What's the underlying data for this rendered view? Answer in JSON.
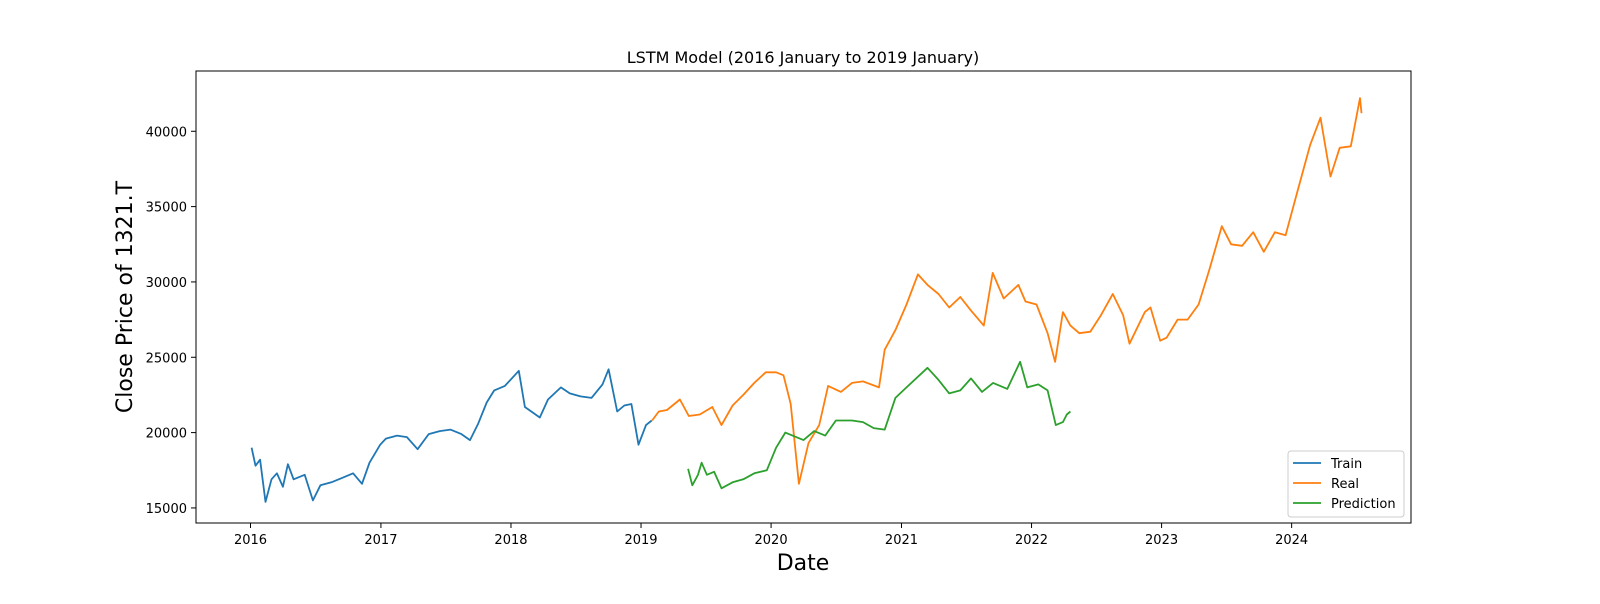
{
  "chart_data": {
    "type": "line",
    "title": "LSTM Model (2016 January to 2019 January)",
    "xlabel": "Date",
    "ylabel": "Close Price of 1321.T",
    "xlim": [
      "2015-08-01",
      "2024-12-01"
    ],
    "ylim": [
      14000,
      44000
    ],
    "x_ticks": [
      "2016",
      "2017",
      "2018",
      "2019",
      "2020",
      "2021",
      "2022",
      "2023",
      "2024"
    ],
    "y_ticks": [
      15000,
      20000,
      25000,
      30000,
      35000,
      40000
    ],
    "grid": false,
    "legend_position": "lower-right",
    "series": [
      {
        "name": "Train",
        "color": "#1f77b4",
        "points": [
          [
            "2016-01-04",
            19000
          ],
          [
            "2016-01-15",
            17800
          ],
          [
            "2016-01-28",
            18200
          ],
          [
            "2016-02-12",
            15400
          ],
          [
            "2016-02-29",
            16900
          ],
          [
            "2016-03-15",
            17300
          ],
          [
            "2016-04-01",
            16400
          ],
          [
            "2016-04-15",
            17900
          ],
          [
            "2016-05-01",
            16900
          ],
          [
            "2016-06-01",
            17200
          ],
          [
            "2016-06-24",
            15500
          ],
          [
            "2016-07-15",
            16500
          ],
          [
            "2016-08-15",
            16700
          ],
          [
            "2016-09-15",
            17000
          ],
          [
            "2016-10-15",
            17300
          ],
          [
            "2016-11-09",
            16600
          ],
          [
            "2016-11-30",
            18000
          ],
          [
            "2016-12-30",
            19200
          ],
          [
            "2017-01-15",
            19600
          ],
          [
            "2017-02-15",
            19800
          ],
          [
            "2017-03-15",
            19700
          ],
          [
            "2017-04-14",
            18900
          ],
          [
            "2017-05-15",
            19900
          ],
          [
            "2017-06-15",
            20100
          ],
          [
            "2017-07-15",
            20200
          ],
          [
            "2017-08-15",
            19900
          ],
          [
            "2017-09-08",
            19500
          ],
          [
            "2017-10-01",
            20600
          ],
          [
            "2017-10-25",
            22000
          ],
          [
            "2017-11-15",
            22800
          ],
          [
            "2017-12-15",
            23100
          ],
          [
            "2018-01-23",
            24100
          ],
          [
            "2018-02-09",
            21700
          ],
          [
            "2018-03-23",
            21000
          ],
          [
            "2018-04-15",
            22200
          ],
          [
            "2018-05-21",
            23000
          ],
          [
            "2018-06-15",
            22600
          ],
          [
            "2018-07-15",
            22400
          ],
          [
            "2018-08-15",
            22300
          ],
          [
            "2018-09-15",
            23200
          ],
          [
            "2018-10-02",
            24200
          ],
          [
            "2018-10-26",
            21400
          ],
          [
            "2018-11-15",
            21800
          ],
          [
            "2018-12-05",
            21900
          ],
          [
            "2018-12-25",
            19200
          ],
          [
            "2019-01-15",
            20500
          ],
          [
            "2019-01-31",
            20800
          ]
        ]
      },
      {
        "name": "Real",
        "color": "#ff7f0e",
        "points": [
          [
            "2019-02-01",
            20800
          ],
          [
            "2019-02-20",
            21400
          ],
          [
            "2019-03-15",
            21500
          ],
          [
            "2019-04-20",
            22200
          ],
          [
            "2019-05-15",
            21100
          ],
          [
            "2019-06-15",
            21200
          ],
          [
            "2019-07-20",
            21700
          ],
          [
            "2019-08-15",
            20500
          ],
          [
            "2019-09-15",
            21800
          ],
          [
            "2019-10-15",
            22500
          ],
          [
            "2019-11-15",
            23300
          ],
          [
            "2019-12-17",
            24000
          ],
          [
            "2020-01-15",
            24000
          ],
          [
            "2020-02-05",
            23800
          ],
          [
            "2020-02-25",
            21900
          ],
          [
            "2020-03-19",
            16600
          ],
          [
            "2020-04-15",
            19300
          ],
          [
            "2020-05-15",
            20500
          ],
          [
            "2020-06-09",
            23100
          ],
          [
            "2020-07-15",
            22700
          ],
          [
            "2020-08-15",
            23300
          ],
          [
            "2020-09-15",
            23400
          ],
          [
            "2020-10-30",
            23000
          ],
          [
            "2020-11-15",
            25500
          ],
          [
            "2020-12-15",
            26800
          ],
          [
            "2021-01-15",
            28500
          ],
          [
            "2021-02-16",
            30500
          ],
          [
            "2021-03-15",
            29800
          ],
          [
            "2021-04-15",
            29200
          ],
          [
            "2021-05-15",
            28300
          ],
          [
            "2021-06-15",
            29000
          ],
          [
            "2021-07-15",
            28100
          ],
          [
            "2021-08-20",
            27100
          ],
          [
            "2021-09-14",
            30600
          ],
          [
            "2021-10-15",
            28900
          ],
          [
            "2021-11-25",
            29800
          ],
          [
            "2021-12-15",
            28700
          ],
          [
            "2022-01-15",
            28500
          ],
          [
            "2022-02-15",
            26600
          ],
          [
            "2022-03-08",
            24700
          ],
          [
            "2022-03-30",
            28000
          ],
          [
            "2022-04-20",
            27100
          ],
          [
            "2022-05-15",
            26600
          ],
          [
            "2022-06-15",
            26700
          ],
          [
            "2022-07-15",
            27800
          ],
          [
            "2022-08-17",
            29200
          ],
          [
            "2022-09-15",
            27800
          ],
          [
            "2022-10-03",
            25900
          ],
          [
            "2022-11-15",
            28000
          ],
          [
            "2022-12-01",
            28300
          ],
          [
            "2022-12-28",
            26100
          ],
          [
            "2023-01-15",
            26300
          ],
          [
            "2023-02-15",
            27500
          ],
          [
            "2023-03-15",
            27500
          ],
          [
            "2023-04-15",
            28500
          ],
          [
            "2023-05-15",
            30800
          ],
          [
            "2023-06-19",
            33700
          ],
          [
            "2023-07-15",
            32500
          ],
          [
            "2023-08-15",
            32400
          ],
          [
            "2023-09-15",
            33300
          ],
          [
            "2023-10-15",
            32000
          ],
          [
            "2023-11-15",
            33300
          ],
          [
            "2023-12-15",
            33100
          ],
          [
            "2024-01-15",
            35800
          ],
          [
            "2024-02-22",
            39100
          ],
          [
            "2024-03-22",
            40900
          ],
          [
            "2024-04-19",
            37000
          ],
          [
            "2024-05-15",
            38900
          ],
          [
            "2024-06-15",
            39000
          ],
          [
            "2024-07-11",
            42200
          ],
          [
            "2024-07-15",
            41200
          ]
        ]
      },
      {
        "name": "Prediction",
        "color": "#2ca02c",
        "points": [
          [
            "2019-05-13",
            17600
          ],
          [
            "2019-05-25",
            16500
          ],
          [
            "2019-06-10",
            17200
          ],
          [
            "2019-06-20",
            18000
          ],
          [
            "2019-07-05",
            17200
          ],
          [
            "2019-07-25",
            17400
          ],
          [
            "2019-08-15",
            16300
          ],
          [
            "2019-09-15",
            16700
          ],
          [
            "2019-10-15",
            16900
          ],
          [
            "2019-11-15",
            17300
          ],
          [
            "2019-12-20",
            17500
          ],
          [
            "2020-01-15",
            19000
          ],
          [
            "2020-02-10",
            20000
          ],
          [
            "2020-03-01",
            19800
          ],
          [
            "2020-04-01",
            19500
          ],
          [
            "2020-05-01",
            20100
          ],
          [
            "2020-06-01",
            19800
          ],
          [
            "2020-07-01",
            20800
          ],
          [
            "2020-08-15",
            20800
          ],
          [
            "2020-09-15",
            20700
          ],
          [
            "2020-10-15",
            20300
          ],
          [
            "2020-11-15",
            20200
          ],
          [
            "2020-12-15",
            22300
          ],
          [
            "2021-01-15",
            23000
          ],
          [
            "2021-03-15",
            24300
          ],
          [
            "2021-04-15",
            23500
          ],
          [
            "2021-05-15",
            22600
          ],
          [
            "2021-06-15",
            22800
          ],
          [
            "2021-07-15",
            23600
          ],
          [
            "2021-08-15",
            22700
          ],
          [
            "2021-09-15",
            23300
          ],
          [
            "2021-10-25",
            22900
          ],
          [
            "2021-11-30",
            24700
          ],
          [
            "2021-12-20",
            23000
          ],
          [
            "2022-01-20",
            23200
          ],
          [
            "2022-02-15",
            22800
          ],
          [
            "2022-03-10",
            20500
          ],
          [
            "2022-03-30",
            20700
          ],
          [
            "2022-04-10",
            21200
          ],
          [
            "2022-04-20",
            21400
          ]
        ]
      }
    ]
  }
}
